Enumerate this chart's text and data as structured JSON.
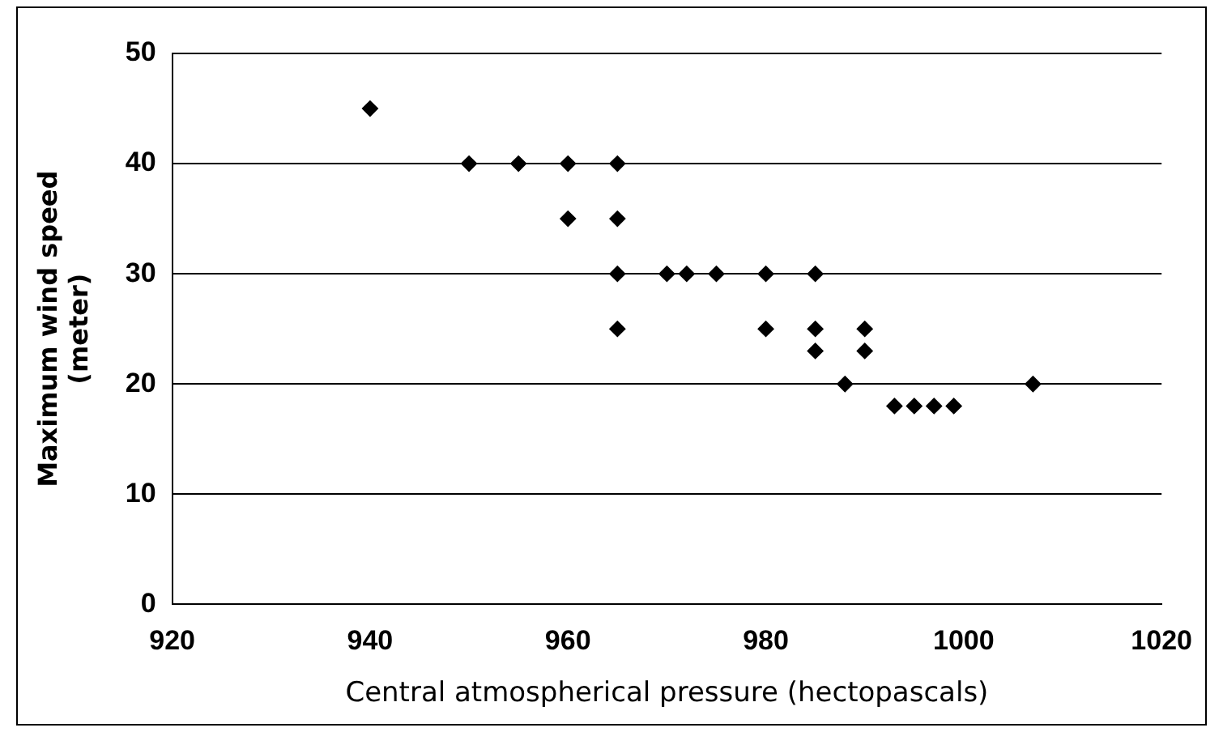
{
  "chart_data": {
    "type": "scatter",
    "xlabel": "Central atmospherical pressure (hectopascals)",
    "ylabel": "Maximum wind speed\n(meter)",
    "x": [
      940,
      950,
      955,
      960,
      960,
      965,
      965,
      965,
      965,
      970,
      972,
      975,
      980,
      980,
      985,
      985,
      985,
      988,
      990,
      990,
      993,
      995,
      997,
      999,
      1007
    ],
    "series": [
      {
        "color": "#000000",
        "values": [
          45,
          40,
          40,
          40,
          35,
          40,
          35,
          30,
          25,
          30,
          30,
          30,
          30,
          25,
          30,
          25,
          23,
          20,
          25,
          23,
          18,
          18,
          18,
          18,
          20
        ]
      }
    ],
    "xlim": [
      920,
      1020
    ],
    "xticks": [
      920,
      940,
      960,
      980,
      1000,
      1020
    ],
    "ylim": [
      0,
      50
    ],
    "yticks": [
      0,
      10,
      20,
      30,
      40,
      50
    ],
    "grid": "y",
    "legend": false,
    "marker": "diamond"
  }
}
